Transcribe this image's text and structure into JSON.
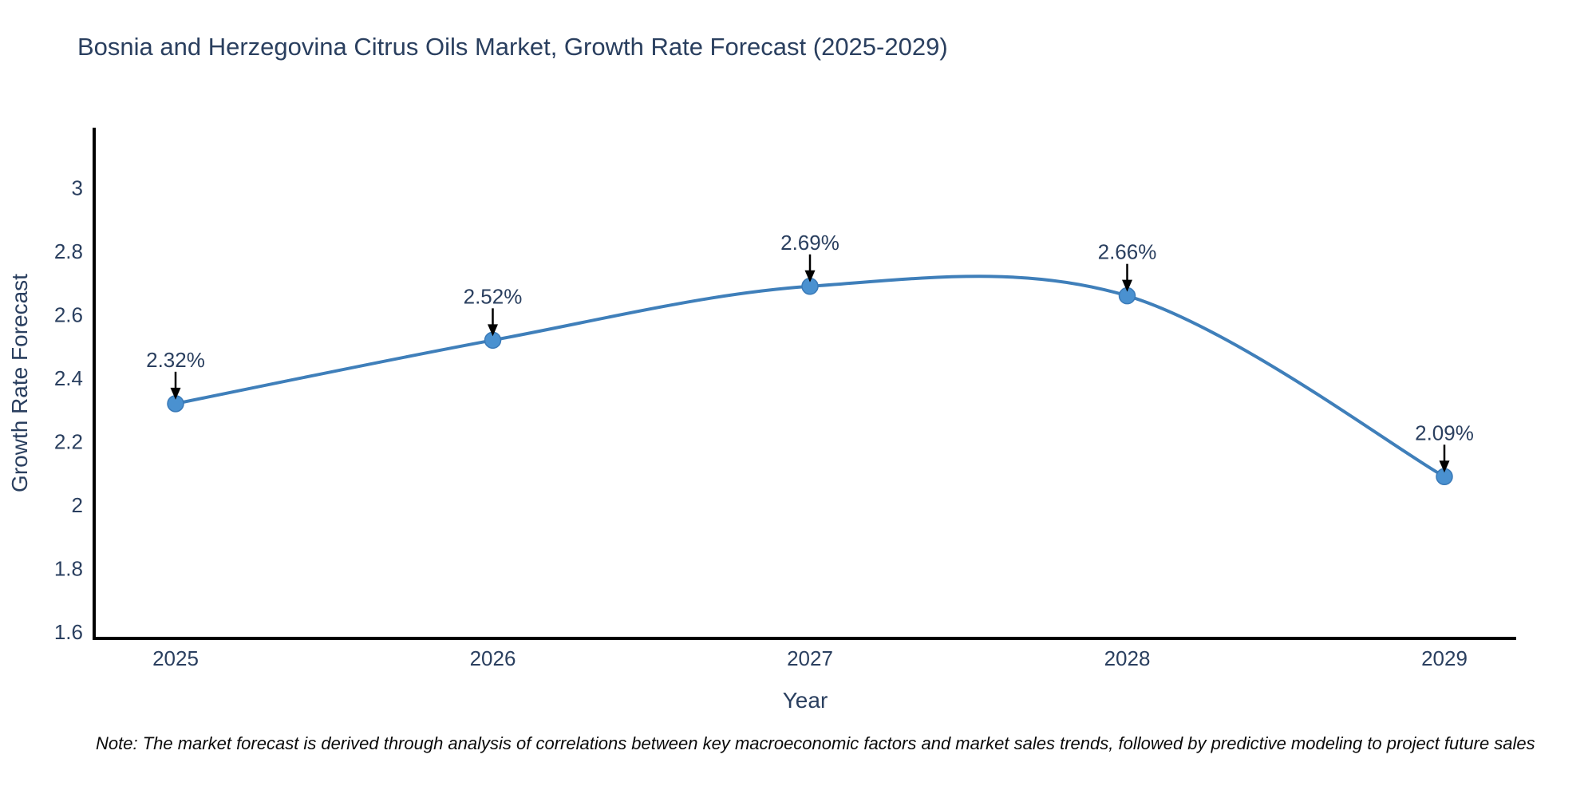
{
  "page": {
    "title": "Bosnia and Herzegovina Citrus Oils Market, Growth Rate Forecast (2025-2029)",
    "note": "Note: The market forecast is derived through analysis of correlations between key macroeconomic factors and market sales trends, followed by predictive modeling to project future sales"
  },
  "colors": {
    "background": "#ffffff",
    "title_text": "#2a3f5f",
    "axis_text": "#2a3f5f",
    "annotation_text": "#2a3f5f",
    "axis_line": "#000000",
    "line": "#3f7fba",
    "marker_fill": "#4a91d0",
    "marker_edge": "#3a7ab8",
    "arrow": "#000000",
    "note_text": "#0a0a0a"
  },
  "chart_data": {
    "type": "line",
    "line_shape": "spline",
    "title": "Bosnia and Herzegovina Citrus Oils Market, Growth Rate Forecast (2025-2029)",
    "xlabel": "Year",
    "ylabel": "Growth Rate Forecast",
    "x": [
      2025,
      2026,
      2027,
      2028,
      2029
    ],
    "y": [
      2.32,
      2.52,
      2.69,
      2.66,
      2.09
    ],
    "point_labels": [
      "2.32%",
      "2.52%",
      "2.69%",
      "2.66%",
      "2.09%"
    ],
    "yticks": [
      3,
      2.8,
      2.6,
      2.4,
      2.2,
      2,
      1.8,
      1.6
    ],
    "ylim": [
      1.58,
      3.19
    ],
    "grid": false,
    "legend": false,
    "markers": true,
    "annotations_with_arrows": true
  }
}
